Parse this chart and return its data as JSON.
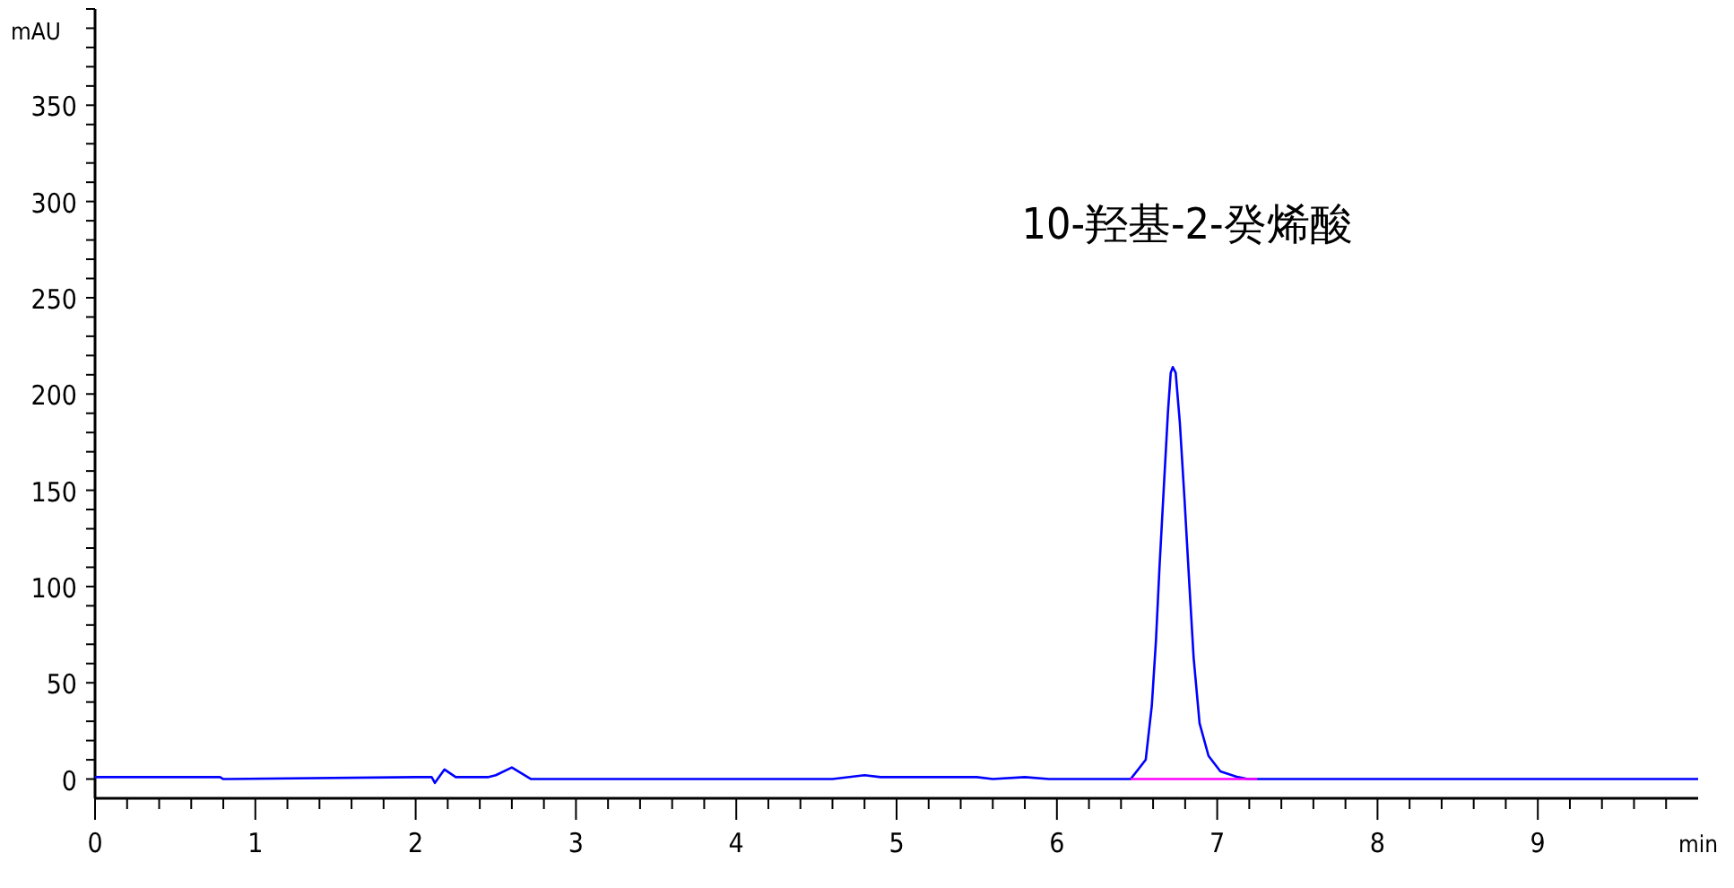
{
  "chart_data": {
    "type": "line",
    "xlabel": "min",
    "ylabel": "mAU",
    "xlim": [
      0,
      10
    ],
    "ylim": [
      -10,
      400
    ],
    "xticks": [
      0,
      1,
      2,
      3,
      4,
      5,
      6,
      7,
      8,
      9,
      {
        "value": 0.2,
        "label": null
      },
      {
        "value": 0.4,
        "label": null
      },
      {
        "value": 0.6,
        "label": null
      },
      {
        "value": 0.8,
        "label": null
      },
      {
        "value": 1.2,
        "label": null
      },
      {
        "value": 1.4,
        "label": null
      },
      {
        "value": 1.6,
        "label": null
      },
      {
        "value": 1.8,
        "label": null
      },
      {
        "value": 2.2,
        "label": null
      },
      {
        "value": 2.4,
        "label": null
      },
      {
        "value": 2.6,
        "label": null
      },
      {
        "value": 2.8,
        "label": null
      },
      {
        "value": 3.2,
        "label": null
      },
      {
        "value": 3.4,
        "label": null
      },
      {
        "value": 3.6,
        "label": null
      },
      {
        "value": 3.8,
        "label": null
      },
      {
        "value": 4.2,
        "label": null
      },
      {
        "value": 4.4,
        "label": null
      },
      {
        "value": 4.6,
        "label": null
      },
      {
        "value": 4.8,
        "label": null
      },
      {
        "value": 5.2,
        "label": null
      },
      {
        "value": 5.4,
        "label": null
      },
      {
        "value": 5.6,
        "label": null
      },
      {
        "value": 5.8,
        "label": null
      },
      {
        "value": 6.2,
        "label": null
      },
      {
        "value": 6.4,
        "label": null
      },
      {
        "value": 6.6,
        "label": null
      },
      {
        "value": 6.8,
        "label": null
      },
      {
        "value": 7.2,
        "label": null
      },
      {
        "value": 7.4,
        "label": null
      },
      {
        "value": 7.6,
        "label": null
      },
      {
        "value": 7.8,
        "label": null
      },
      {
        "value": 8.2,
        "label": null
      },
      {
        "value": 8.4,
        "label": null
      },
      {
        "value": 8.6,
        "label": null
      },
      {
        "value": 8.8,
        "label": null
      },
      {
        "value": 9.2,
        "label": null
      },
      {
        "value": 9.4,
        "label": null
      },
      {
        "value": 9.6,
        "label": null
      },
      {
        "value": 9.8,
        "label": null
      }
    ],
    "yticks": [
      0,
      50,
      100,
      150,
      200,
      250,
      300,
      350,
      {
        "value": 10,
        "label": null
      },
      {
        "value": 20,
        "label": null
      },
      {
        "value": 30,
        "label": null
      },
      {
        "value": 40,
        "label": null
      },
      {
        "value": 60,
        "label": null
      },
      {
        "value": 70,
        "label": null
      },
      {
        "value": 80,
        "label": null
      },
      {
        "value": 90,
        "label": null
      },
      {
        "value": 110,
        "label": null
      },
      {
        "value": 120,
        "label": null
      },
      {
        "value": 130,
        "label": null
      },
      {
        "value": 140,
        "label": null
      },
      {
        "value": 160,
        "label": null
      },
      {
        "value": 170,
        "label": null
      },
      {
        "value": 180,
        "label": null
      },
      {
        "value": 190,
        "label": null
      },
      {
        "value": 210,
        "label": null
      },
      {
        "value": 220,
        "label": null
      },
      {
        "value": 230,
        "label": null
      },
      {
        "value": 240,
        "label": null
      },
      {
        "value": 260,
        "label": null
      },
      {
        "value": 270,
        "label": null
      },
      {
        "value": 280,
        "label": null
      },
      {
        "value": 290,
        "label": null
      },
      {
        "value": 310,
        "label": null
      },
      {
        "value": 320,
        "label": null
      },
      {
        "value": 330,
        "label": null
      },
      {
        "value": 340,
        "label": null
      },
      {
        "value": 360,
        "label": null
      },
      {
        "value": 370,
        "label": null
      },
      {
        "value": 380,
        "label": null
      },
      {
        "value": 390,
        "label": null
      },
      {
        "value": 400,
        "label": null
      }
    ],
    "grid": false,
    "marker": "none",
    "line_style": "solid",
    "annotations": [
      "10-羟基-2-癸烯酸"
    ],
    "series": [
      {
        "color": "#0000ff",
        "x": [
          0,
          0.78,
          0.8,
          2.0,
          2.1,
          2.12,
          2.18,
          2.25,
          2.45,
          2.5,
          2.6,
          2.72,
          4.6,
          4.8,
          4.9,
          5.5,
          5.6,
          5.8,
          5.95,
          6.46,
          6.554,
          6.592,
          6.618,
          6.64,
          6.666,
          6.693,
          6.71,
          6.723,
          6.741,
          6.767,
          6.797,
          6.827,
          6.853,
          6.89,
          6.946,
          7.02,
          7.13,
          7.19,
          10
        ],
        "values": [
          1,
          1,
          0,
          1,
          1,
          -2,
          5,
          1,
          1,
          2,
          6,
          0,
          0,
          2,
          1,
          1,
          0,
          1,
          0,
          0,
          10,
          38,
          72,
          110,
          150,
          191,
          211,
          214,
          211,
          185,
          144,
          100,
          63,
          29,
          12,
          4,
          1,
          0,
          0
        ]
      },
      {
        "color": "#ff00ff",
        "x": [
          6.46,
          7.25
        ],
        "values": [
          0,
          0
        ]
      }
    ]
  }
}
